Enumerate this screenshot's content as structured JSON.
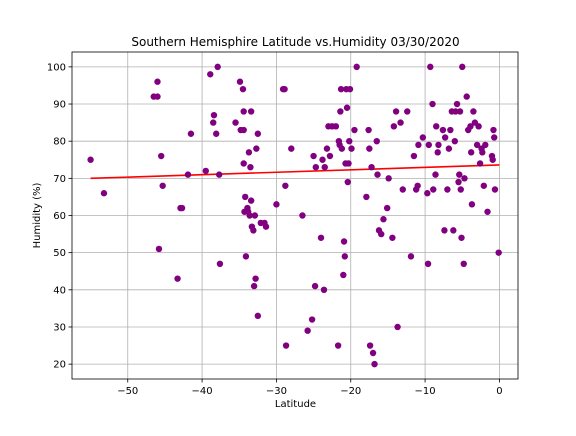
{
  "chart_data": {
    "type": "scatter",
    "title": "Southern Hemisphire Latitude vs.Humidity 03/30/2020",
    "xlabel": "Latitude",
    "ylabel": "Humidity (%)",
    "xlim": [
      -57.5,
      2.5
    ],
    "ylim": [
      16,
      104
    ],
    "xticks": [
      -50,
      -40,
      -30,
      -20,
      -10,
      0
    ],
    "yticks": [
      20,
      30,
      40,
      50,
      60,
      70,
      80,
      90,
      100
    ],
    "xtick_labels": [
      "−50",
      "−40",
      "−30",
      "−20",
      "−10",
      "0"
    ],
    "ytick_labels": [
      "20",
      "30",
      "40",
      "50",
      "60",
      "70",
      "80",
      "90",
      "100"
    ],
    "grid": true,
    "legend": "none",
    "marker_color": "#800080",
    "line_color": "#ff0000",
    "regression_line": {
      "x": [
        -55,
        0
      ],
      "y": [
        70.0,
        73.6
      ]
    },
    "points": [
      [
        -55,
        75
      ],
      [
        -53.2,
        66
      ],
      [
        -46.5,
        92
      ],
      [
        -46,
        96
      ],
      [
        -46,
        92
      ],
      [
        -45.8,
        51
      ],
      [
        -45.5,
        76
      ],
      [
        -45.3,
        68
      ],
      [
        -43.3,
        43
      ],
      [
        -42.9,
        62
      ],
      [
        -42.7,
        62
      ],
      [
        -41.9,
        71
      ],
      [
        -41.5,
        82
      ],
      [
        -39.5,
        72
      ],
      [
        -38.9,
        98
      ],
      [
        -38.5,
        85
      ],
      [
        -38.4,
        87
      ],
      [
        -38.1,
        82
      ],
      [
        -37.9,
        100
      ],
      [
        -37.7,
        71
      ],
      [
        -37.6,
        47
      ],
      [
        -35.5,
        85
      ],
      [
        -34.9,
        96
      ],
      [
        -34.8,
        83
      ],
      [
        -34.5,
        94
      ],
      [
        -34.4,
        88
      ],
      [
        -34.4,
        83
      ],
      [
        -34.4,
        74
      ],
      [
        -34.3,
        61
      ],
      [
        -34.2,
        65
      ],
      [
        -34.1,
        49
      ],
      [
        -33.9,
        62
      ],
      [
        -33.8,
        61
      ],
      [
        -33.7,
        77
      ],
      [
        -33.6,
        60
      ],
      [
        -33.5,
        73
      ],
      [
        -33.4,
        88
      ],
      [
        -33.4,
        64
      ],
      [
        -33.3,
        57
      ],
      [
        -33.1,
        56
      ],
      [
        -33.0,
        41
      ],
      [
        -32.9,
        60
      ],
      [
        -32.8,
        43
      ],
      [
        -32.7,
        78
      ],
      [
        -32.5,
        82
      ],
      [
        -32.5,
        33
      ],
      [
        -32.1,
        58
      ],
      [
        -31.6,
        58
      ],
      [
        -31.4,
        57
      ],
      [
        -30.0,
        63
      ],
      [
        -29.1,
        94
      ],
      [
        -28.9,
        94
      ],
      [
        -28.8,
        68
      ],
      [
        -28.7,
        25
      ],
      [
        -28.0,
        78
      ],
      [
        -26.5,
        60
      ],
      [
        -25.8,
        29
      ],
      [
        -25.2,
        32
      ],
      [
        -25.0,
        76
      ],
      [
        -24.8,
        41
      ],
      [
        -24.7,
        73
      ],
      [
        -24.0,
        54
      ],
      [
        -23.8,
        75
      ],
      [
        -23.6,
        40
      ],
      [
        -23.5,
        73
      ],
      [
        -23.2,
        78
      ],
      [
        -23.0,
        84
      ],
      [
        -22.8,
        76
      ],
      [
        -22.5,
        84
      ],
      [
        -22.0,
        84
      ],
      [
        -21.7,
        25
      ],
      [
        -21.6,
        80
      ],
      [
        -21.5,
        79
      ],
      [
        -21.4,
        88
      ],
      [
        -21.3,
        94
      ],
      [
        -21.2,
        78
      ],
      [
        -21.0,
        44
      ],
      [
        -20.9,
        53
      ],
      [
        -20.8,
        49
      ],
      [
        -20.7,
        74
      ],
      [
        -20.6,
        94
      ],
      [
        -20.5,
        89
      ],
      [
        -20.4,
        69
      ],
      [
        -20.3,
        74
      ],
      [
        -20.2,
        80
      ],
      [
        -20.1,
        94
      ],
      [
        -19.9,
        78
      ],
      [
        -19.5,
        83
      ],
      [
        -19.2,
        100
      ],
      [
        -17.9,
        65
      ],
      [
        -17.6,
        83
      ],
      [
        -17.5,
        78
      ],
      [
        -17.4,
        25
      ],
      [
        -17.2,
        73
      ],
      [
        -17.0,
        23
      ],
      [
        -16.8,
        20
      ],
      [
        -16.5,
        80
      ],
      [
        -16.4,
        71
      ],
      [
        -16.2,
        56
      ],
      [
        -15.9,
        55
      ],
      [
        -15.6,
        59
      ],
      [
        -15.1,
        62
      ],
      [
        -14.9,
        70
      ],
      [
        -14.4,
        54
      ],
      [
        -14.2,
        84
      ],
      [
        -13.9,
        88
      ],
      [
        -13.7,
        30
      ],
      [
        -13.3,
        85
      ],
      [
        -13.0,
        67
      ],
      [
        -12.4,
        88
      ],
      [
        -11.9,
        49
      ],
      [
        -11.5,
        76
      ],
      [
        -11.2,
        67
      ],
      [
        -11.0,
        68
      ],
      [
        -10.9,
        79
      ],
      [
        -10.3,
        81
      ],
      [
        -9.7,
        66
      ],
      [
        -9.6,
        47
      ],
      [
        -9.5,
        79
      ],
      [
        -9.3,
        100
      ],
      [
        -9.0,
        90
      ],
      [
        -8.9,
        67
      ],
      [
        -8.6,
        71
      ],
      [
        -8.5,
        84
      ],
      [
        -8.3,
        77
      ],
      [
        -8.2,
        79
      ],
      [
        -7.6,
        83
      ],
      [
        -7.4,
        56
      ],
      [
        -7.3,
        81
      ],
      [
        -7.0,
        67
      ],
      [
        -6.8,
        78
      ],
      [
        -6.6,
        83
      ],
      [
        -6.4,
        88
      ],
      [
        -6.2,
        56
      ],
      [
        -6.0,
        80
      ],
      [
        -5.9,
        88
      ],
      [
        -5.7,
        90
      ],
      [
        -5.5,
        69
      ],
      [
        -5.4,
        71
      ],
      [
        -5.3,
        88
      ],
      [
        -5.2,
        67
      ],
      [
        -5.1,
        54
      ],
      [
        -5.0,
        100
      ],
      [
        -4.8,
        47
      ],
      [
        -4.7,
        70
      ],
      [
        -4.4,
        92
      ],
      [
        -4.2,
        83
      ],
      [
        -3.9,
        84
      ],
      [
        -3.8,
        77
      ],
      [
        -3.7,
        63
      ],
      [
        -3.5,
        88
      ],
      [
        -3.3,
        85
      ],
      [
        -3.0,
        79
      ],
      [
        -2.8,
        84
      ],
      [
        -2.6,
        74
      ],
      [
        -2.4,
        78
      ],
      [
        -2.3,
        77
      ],
      [
        -2.1,
        68
      ],
      [
        -1.9,
        79
      ],
      [
        -1.6,
        61
      ],
      [
        -1.0,
        76
      ],
      [
        -0.9,
        75
      ],
      [
        -0.8,
        83
      ],
      [
        -0.7,
        81
      ],
      [
        -0.6,
        67
      ],
      [
        -0.1,
        50
      ]
    ]
  }
}
